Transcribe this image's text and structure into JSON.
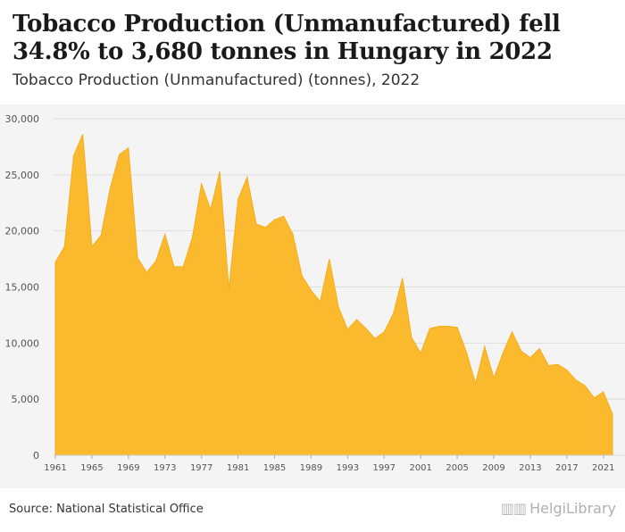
{
  "header": {
    "title": "Tobacco Production (Unmanufactured) fell 34.8% to 3,680 tonnes in Hungary in 2022",
    "subtitle": "Tobacco Production (Unmanufactured) (tonnes), 2022"
  },
  "footer": {
    "source": "Source: National Statistical Office",
    "brand": "HelgiLibrary"
  },
  "colors": {
    "area_fill": "#FBBA2E",
    "area_stroke": "#F2AE1C",
    "gridline": "#dddddd",
    "axis_text": "#555555",
    "panel_bg": "#f4f4f4"
  },
  "chart_data": {
    "type": "area",
    "title": "Tobacco Production (Unmanufactured) fell 34.8% to 3,680 tonnes in Hungary in 2022",
    "subtitle": "Tobacco Production (Unmanufactured) (tonnes), 2022",
    "xlabel": "",
    "ylabel": "",
    "ylim": [
      0,
      30000
    ],
    "yticks": [
      0,
      5000,
      10000,
      15000,
      20000,
      25000,
      30000
    ],
    "ytick_labels": [
      "0",
      "5,000",
      "10,000",
      "15,000",
      "20,000",
      "25,000",
      "30,000"
    ],
    "xticks": [
      1961,
      1965,
      1969,
      1973,
      1977,
      1981,
      1985,
      1989,
      1993,
      1997,
      2001,
      2005,
      2009,
      2013,
      2017,
      2021
    ],
    "grid": true,
    "legend": "none",
    "series": [
      {
        "x": [
          1961,
          1962,
          1963,
          1964,
          1965,
          1966,
          1967,
          1968,
          1969,
          1970,
          1971,
          1972,
          1973,
          1974,
          1975,
          1976,
          1977,
          1978,
          1979,
          1980,
          1981,
          1982,
          1983,
          1984,
          1985,
          1986,
          1987,
          1988,
          1989,
          1990,
          1991,
          1992,
          1993,
          1994,
          1995,
          1996,
          1997,
          1998,
          1999,
          2000,
          2001,
          2002,
          2003,
          2004,
          2005,
          2006,
          2007,
          2008,
          2009,
          2010,
          2011,
          2012,
          2013,
          2014,
          2015,
          2016,
          2017,
          2018,
          2019,
          2020,
          2021,
          2022
        ],
        "values": [
          17200,
          18600,
          26700,
          28600,
          18600,
          19600,
          23800,
          26800,
          27400,
          17600,
          16300,
          17300,
          19700,
          16800,
          16800,
          19400,
          24200,
          21900,
          25300,
          14800,
          22800,
          24800,
          20600,
          20300,
          21000,
          21300,
          19700,
          16000,
          14700,
          13700,
          17500,
          13200,
          11200,
          12100,
          11300,
          10400,
          11000,
          12600,
          15800,
          10500,
          9100,
          11300,
          11500,
          11500,
          11400,
          9200,
          6400,
          9700,
          6900,
          9100,
          11000,
          9300,
          8700,
          9500,
          8000,
          8100,
          7600,
          6700,
          6200,
          5100,
          5650,
          3680
        ]
      }
    ]
  }
}
